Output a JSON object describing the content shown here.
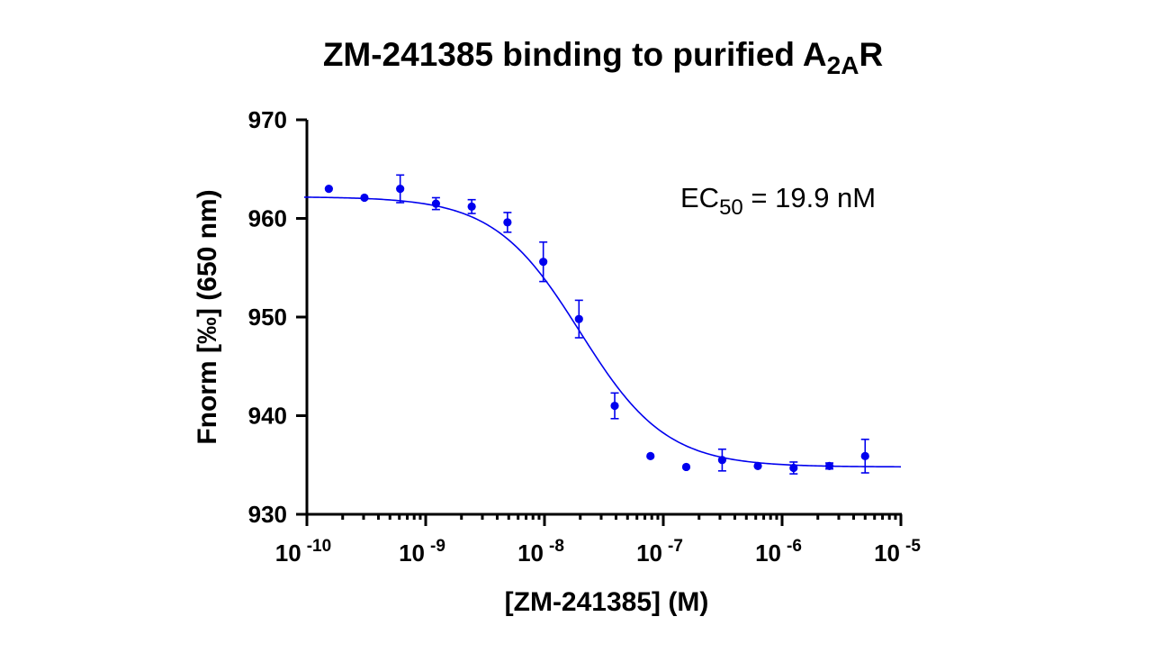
{
  "chart_data": {
    "type": "scatter",
    "title": "ZM-241385 binding to purified A",
    "title_sub": "2A",
    "title_suffix": "R",
    "xlabel": "[ZM-241385] (M)",
    "ylabel": "Fnorm [‰] (650 nm)",
    "x_scale": "log",
    "xlim": [
      1e-10,
      1e-05
    ],
    "ylim": [
      930,
      970
    ],
    "y_ticks": [
      930,
      940,
      950,
      960,
      970
    ],
    "x_ticks": [
      {
        "value": 1e-10,
        "base": "10",
        "exp": "-10"
      },
      {
        "value": 1e-09,
        "base": "10",
        "exp": "-9"
      },
      {
        "value": 1e-08,
        "base": "10",
        "exp": "-8"
      },
      {
        "value": 1e-07,
        "base": "10",
        "exp": "-7"
      },
      {
        "value": 1e-06,
        "base": "10",
        "exp": "-6"
      },
      {
        "value": 1e-05,
        "base": "10",
        "exp": "-5"
      }
    ],
    "color": "#0000ee",
    "grid": false,
    "series": [
      {
        "points": [
          {
            "x": 1.53e-10,
            "y": 963.0,
            "err": 0
          },
          {
            "x": 3.05e-10,
            "y": 962.1,
            "err": 0
          },
          {
            "x": 6.1e-10,
            "y": 963.0,
            "err": 1.4
          },
          {
            "x": 1.22e-09,
            "y": 961.5,
            "err": 0.6
          },
          {
            "x": 2.44e-09,
            "y": 961.2,
            "err": 0.7
          },
          {
            "x": 4.88e-09,
            "y": 959.6,
            "err": 1.0
          },
          {
            "x": 9.77e-09,
            "y": 955.6,
            "err": 2.0
          },
          {
            "x": 1.95e-08,
            "y": 949.8,
            "err": 1.9
          },
          {
            "x": 3.9e-08,
            "y": 941.0,
            "err": 1.3
          },
          {
            "x": 7.8e-08,
            "y": 935.9,
            "err": 0
          },
          {
            "x": 1.56e-07,
            "y": 934.8,
            "err": 0
          },
          {
            "x": 3.13e-07,
            "y": 935.5,
            "err": 1.1
          },
          {
            "x": 6.25e-07,
            "y": 934.9,
            "err": 0
          },
          {
            "x": 1.25e-06,
            "y": 934.7,
            "err": 0.6
          },
          {
            "x": 2.5e-06,
            "y": 934.9,
            "err": 0.3
          },
          {
            "x": 5e-06,
            "y": 935.9,
            "err": 1.7
          }
        ],
        "fit": {
          "model": "four-parameter logistic",
          "top": 962.2,
          "bottom": 934.8,
          "ec50": 1.99e-08,
          "hill": -1.2
        }
      }
    ],
    "annotation": {
      "prefix": "EC",
      "sub": "50",
      "suffix": " = 19.9 nM"
    }
  }
}
